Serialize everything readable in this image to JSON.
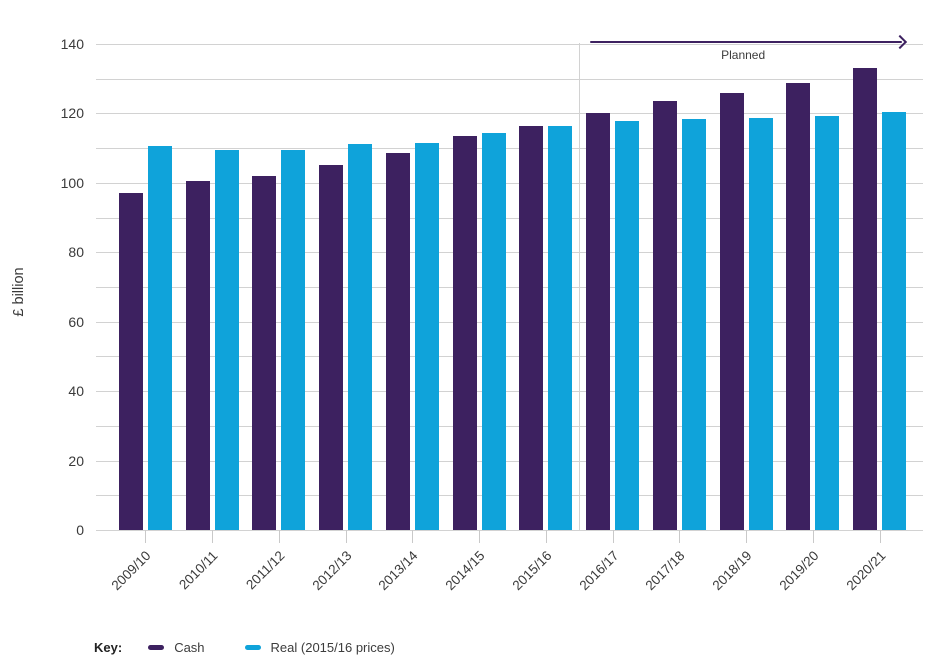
{
  "chart_data": {
    "type": "bar",
    "title": "",
    "ylabel": "£ billion",
    "ylim": [
      0,
      140
    ],
    "grid_interval": 10,
    "grid": "horizontal",
    "y_tick_labels": [
      0,
      20,
      40,
      60,
      80,
      100,
      120,
      140
    ],
    "categories": [
      "2009/10",
      "2010/11",
      "2011/12",
      "2012/13",
      "2013/14",
      "2014/15",
      "2015/16",
      "2016/17",
      "2017/18",
      "2018/19",
      "2019/20",
      "2020/21"
    ],
    "series": [
      {
        "name": "Cash",
        "color": "#3d2160",
        "values": [
          97.0,
          100.4,
          102.0,
          105.2,
          108.6,
          113.4,
          116.4,
          120.2,
          123.6,
          126.0,
          128.7,
          133.1
        ]
      },
      {
        "name": "Real (2015/16 prices)",
        "color": "#0fa3da",
        "values": [
          110.7,
          109.4,
          109.6,
          111.1,
          111.6,
          114.3,
          116.4,
          117.9,
          118.5,
          118.7,
          119.2,
          120.5
        ]
      }
    ],
    "legend_prefix": "Key:",
    "legend_position": "bottom-left",
    "annotation": {
      "label": "Planned",
      "divider_after_category": "2015/16",
      "arrow_color": "#3d2160"
    },
    "colors": {
      "grid": "#d2d2d2",
      "text": "#3a3a3a",
      "background": "#ffffff"
    }
  }
}
